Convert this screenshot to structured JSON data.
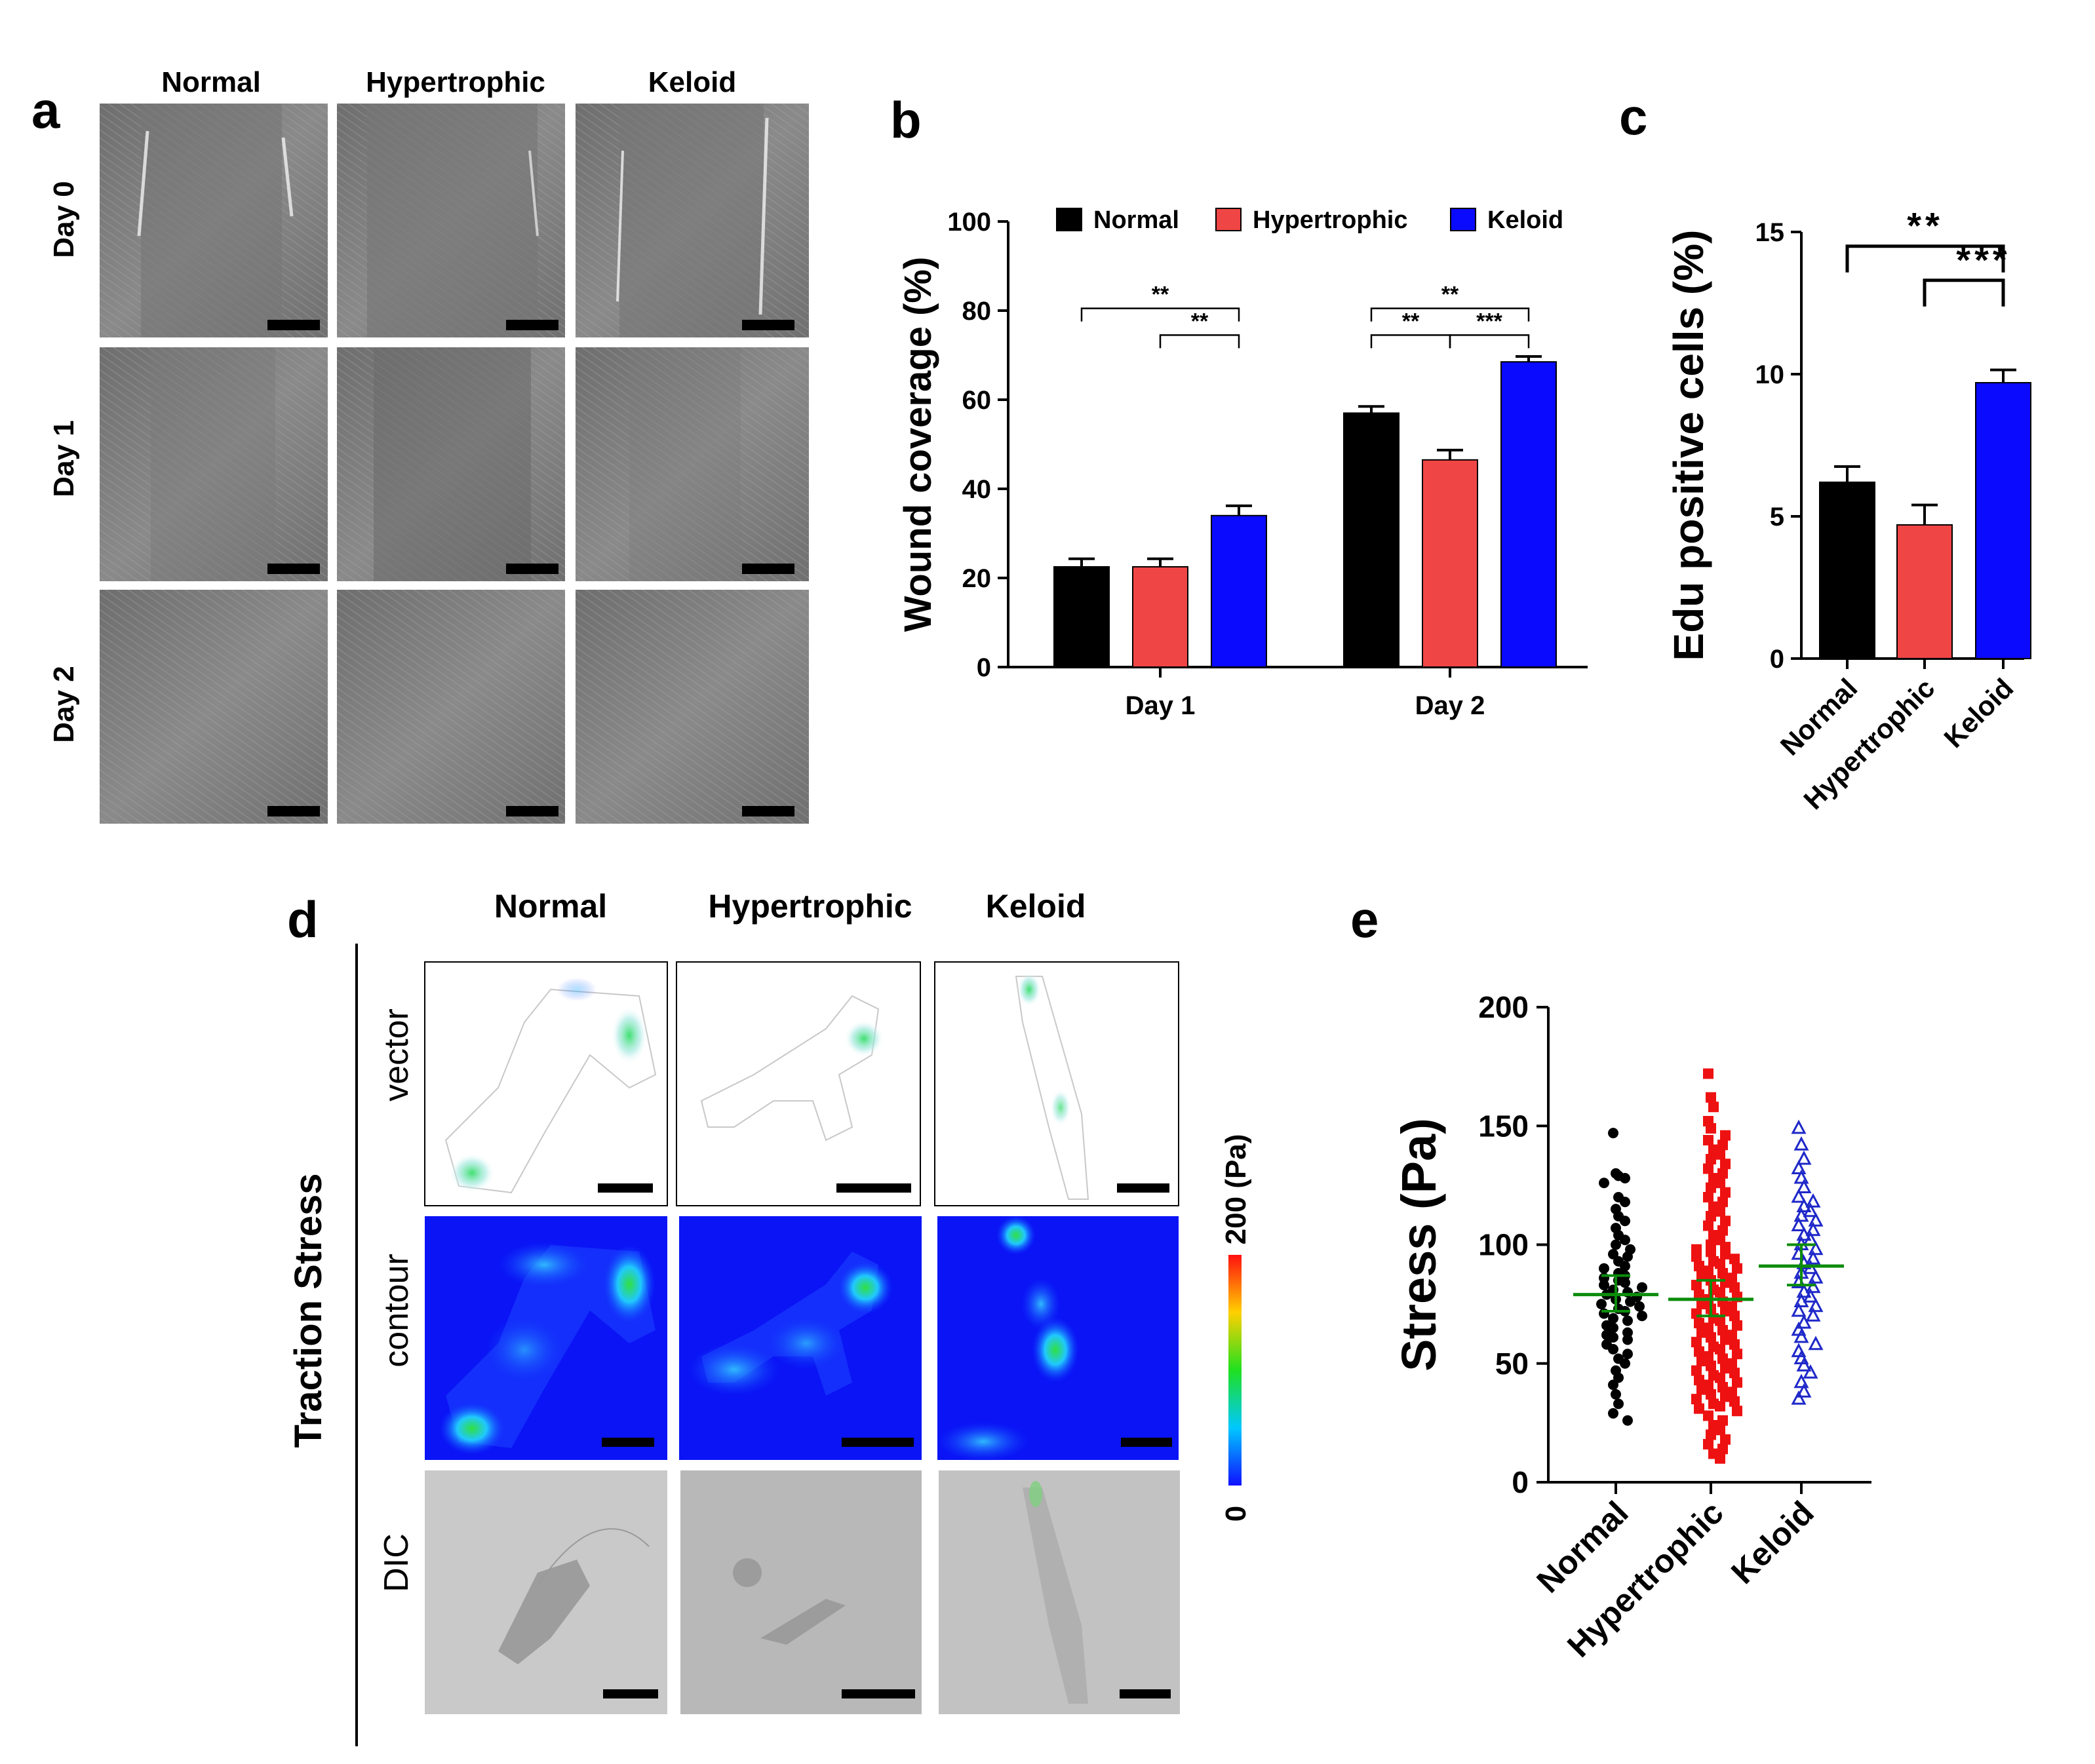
{
  "panels": {
    "a": {
      "letter": "a",
      "columns": [
        "Normal",
        "Hypertrophic",
        "Keloid"
      ],
      "rows": [
        "Day 0",
        "Day 1",
        "Day 2"
      ]
    },
    "d": {
      "letter": "d",
      "columns": [
        "Normal",
        "Hypertrophic",
        "Keloid"
      ],
      "rows": [
        "vector",
        "contour",
        "DIC"
      ],
      "side_label": "Traction Stress",
      "colorbar_top": "200 (Pa)",
      "colorbar_bottom": "0"
    }
  },
  "chart_data": [
    {
      "panel": "b",
      "type": "bar",
      "title": "",
      "xlabel": "",
      "ylabel": "Wound coverage (%)",
      "ylim": [
        0,
        100
      ],
      "yticks": [
        "0",
        "20",
        "40",
        "60",
        "80",
        "100"
      ],
      "categories": [
        "Day 1",
        "Day 2"
      ],
      "series": [
        {
          "name": "Normal",
          "color": "#000000",
          "values": [
            22.5,
            57
          ],
          "errors": [
            1.8,
            1.5
          ]
        },
        {
          "name": "Hypertrophic",
          "color": "#f04545",
          "values": [
            22.5,
            46.5
          ],
          "errors": [
            1.8,
            2.2
          ]
        },
        {
          "name": "Keloid",
          "color": "#0a0aff",
          "values": [
            34,
            68.5
          ],
          "errors": [
            2.2,
            1.2
          ]
        }
      ],
      "legend_position": "top",
      "significance": [
        {
          "label": "**",
          "category": "Day 1",
          "pair": [
            "Normal",
            "Keloid"
          ]
        },
        {
          "label": "**",
          "category": "Day 1",
          "pair": [
            "Hypertrophic",
            "Keloid"
          ]
        },
        {
          "label": "**",
          "category": "Day 2",
          "pair": [
            "Normal",
            "Keloid"
          ]
        },
        {
          "label": "**",
          "category": "Day 2",
          "pair": [
            "Normal",
            "Hypertrophic"
          ]
        },
        {
          "label": "***",
          "category": "Day 2",
          "pair": [
            "Hypertrophic",
            "Keloid"
          ]
        }
      ]
    },
    {
      "panel": "c",
      "type": "bar",
      "title": "",
      "xlabel": "",
      "ylabel": "Edu positive cells (%)",
      "ylim": [
        0,
        15
      ],
      "yticks": [
        "0",
        "5",
        "10",
        "15"
      ],
      "categories": [
        "Normal",
        "Hypertrophic",
        "Keloid"
      ],
      "values": [
        6.2,
        4.7,
        9.7
      ],
      "errors": [
        0.55,
        0.7,
        0.45
      ],
      "colors": [
        "#000000",
        "#f04545",
        "#0a0aff"
      ],
      "significance": [
        {
          "label": "**",
          "pair": [
            "Normal",
            "Keloid"
          ]
        },
        {
          "label": "***",
          "pair": [
            "Hypertrophic",
            "Keloid"
          ]
        }
      ]
    },
    {
      "panel": "e",
      "type": "scatter",
      "title": "",
      "xlabel": "",
      "ylabel": "Stress (Pa)",
      "ylim": [
        0,
        200
      ],
      "yticks": [
        "0",
        "50",
        "100",
        "150",
        "200"
      ],
      "categories": [
        "Normal",
        "Hypertrophic",
        "Keloid"
      ],
      "groups": [
        {
          "name": "Normal",
          "color": "#000000",
          "marker": "circle",
          "mean": 79,
          "ci": [
            72,
            87
          ],
          "values": [
            147,
            130,
            129,
            128,
            126,
            120,
            118,
            115,
            112,
            110,
            107,
            104,
            102,
            100,
            98,
            96,
            95,
            93,
            91,
            90,
            88,
            87,
            86,
            85,
            84,
            83,
            82,
            81,
            80,
            79,
            78,
            77,
            76,
            75,
            74,
            73,
            72,
            71,
            70,
            69,
            68,
            66,
            65,
            63,
            62,
            61,
            60,
            58,
            56,
            54,
            52,
            50,
            47,
            44,
            41,
            37,
            33,
            29,
            26
          ]
        },
        {
          "name": "Hypertrophic",
          "color": "#ee1111",
          "marker": "square",
          "mean": 77,
          "ci": [
            70,
            85
          ],
          "values": [
            172,
            162,
            158,
            152,
            149,
            146,
            144,
            142,
            140,
            138,
            136,
            134,
            132,
            130,
            128,
            126,
            124,
            122,
            120,
            118,
            116,
            114,
            112,
            110,
            108,
            106,
            104,
            102,
            100,
            99,
            98,
            97,
            96,
            95,
            94,
            93,
            92,
            91,
            90,
            89,
            88,
            87,
            86,
            85,
            84,
            83,
            82,
            81,
            80,
            79,
            78,
            77,
            76,
            75,
            74,
            73,
            72,
            71,
            70,
            69,
            68,
            67,
            66,
            65,
            64,
            63,
            62,
            61,
            60,
            59,
            58,
            57,
            56,
            55,
            54,
            53,
            52,
            51,
            50,
            49,
            48,
            47,
            46,
            45,
            44,
            43,
            42,
            41,
            40,
            39,
            38,
            37,
            36,
            35,
            34,
            33,
            32,
            31,
            30,
            28,
            26,
            24,
            22,
            20,
            18,
            16,
            14,
            12,
            10
          ]
        },
        {
          "name": "Keloid",
          "color": "#1f28c8",
          "marker": "triangle",
          "mean": 91,
          "ci": [
            83,
            100
          ],
          "values": [
            149,
            142,
            136,
            132,
            128,
            124,
            120,
            118,
            116,
            114,
            112,
            110,
            108,
            106,
            104,
            102,
            100,
            98,
            96,
            94,
            92,
            90,
            88,
            86,
            84,
            82,
            80,
            78,
            76,
            74,
            72,
            70,
            67,
            64,
            61,
            58,
            55,
            52,
            49,
            46,
            42,
            38,
            35
          ]
        }
      ]
    }
  ]
}
